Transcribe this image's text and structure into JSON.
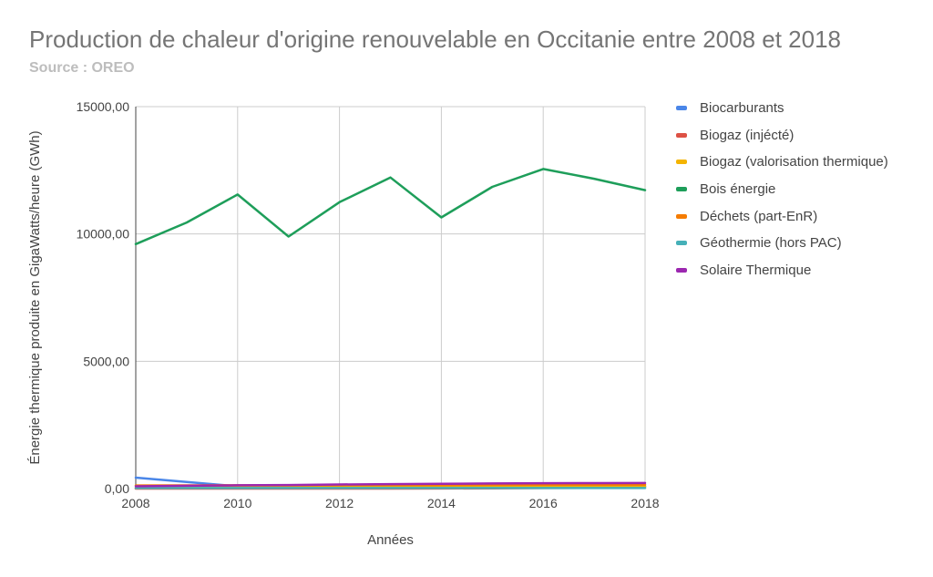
{
  "chart_data": {
    "type": "line",
    "title": "Production de chaleur d'origine renouvelable en Occitanie entre 2008 et 2018",
    "subtitle": "Source : OREO",
    "xlabel": "Années",
    "ylabel": "Énergie thermique produite en GigaWatts/heure (GWh)",
    "x": [
      2008,
      2009,
      2010,
      2011,
      2012,
      2013,
      2014,
      2015,
      2016,
      2017,
      2018
    ],
    "x_ticks": [
      2008,
      2010,
      2012,
      2014,
      2016,
      2018
    ],
    "y_ticks": [
      "0,00",
      "5000,00",
      "10000,00",
      "15000,00"
    ],
    "y_tick_values": [
      0,
      5000,
      10000,
      15000
    ],
    "ylim": [
      0,
      15000
    ],
    "xlim": [
      2008,
      2018
    ],
    "grid": true,
    "legend_position": "right",
    "series": [
      {
        "name": "Biocarburants",
        "color": "#4a86e8",
        "values": [
          430,
          260,
          90,
          90,
          90,
          90,
          90,
          90,
          90,
          90,
          90
        ]
      },
      {
        "name": "Biogaz (injécté)",
        "color": "#dd5144",
        "values": [
          0,
          0,
          0,
          0,
          0,
          0,
          5,
          10,
          20,
          30,
          40
        ]
      },
      {
        "name": "Biogaz (valorisation thermique)",
        "color": "#f4b400",
        "values": [
          40,
          45,
          50,
          55,
          60,
          65,
          70,
          75,
          80,
          85,
          90
        ]
      },
      {
        "name": "Bois énergie",
        "color": "#1e9e5a",
        "values": [
          9600,
          10450,
          11550,
          9900,
          11250,
          12220,
          10650,
          11850,
          12550,
          12170,
          11720
        ]
      },
      {
        "name": "Déchets (part-EnR)",
        "color": "#f57c00",
        "values": [
          120,
          125,
          130,
          130,
          135,
          140,
          140,
          145,
          150,
          150,
          150
        ]
      },
      {
        "name": "Géothermie (hors PAC)",
        "color": "#45b0b8",
        "values": [
          20,
          20,
          20,
          20,
          20,
          20,
          20,
          20,
          20,
          20,
          20
        ]
      },
      {
        "name": "Solaire Thermique",
        "color": "#9c27b0",
        "values": [
          90,
          110,
          130,
          140,
          160,
          175,
          190,
          200,
          210,
          215,
          220
        ]
      }
    ]
  }
}
